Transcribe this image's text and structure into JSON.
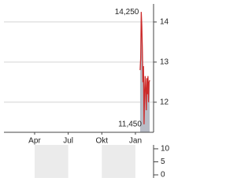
{
  "chart_data": [
    {
      "type": "line",
      "x": [
        12.42,
        12.47,
        12.52,
        12.57,
        12.62,
        12.67,
        12.72,
        12.77,
        12.82,
        12.87,
        12.92,
        12.97,
        13.02,
        13.07,
        13.12,
        13.17,
        13.22,
        13.27
      ],
      "series": [
        {
          "color": "#cc2a2a",
          "area_color": "#b8bcc6",
          "values": [
            12.8,
            13.1,
            14.25,
            13.9,
            13.3,
            12.5,
            12.9,
            11.45,
            12.2,
            12.65,
            12.3,
            11.8,
            12.6,
            12.2,
            12.65,
            12.0,
            12.5,
            12.55
          ]
        }
      ],
      "xlim": [
        0.26,
        13.62
      ],
      "xticks": [
        {
          "value": 3,
          "label": "Apr"
        },
        {
          "value": 6,
          "label": "Jul"
        },
        {
          "value": 9,
          "label": "Okt"
        },
        {
          "value": 12,
          "label": "Jan"
        }
      ],
      "ylim": [
        11.25,
        14.45
      ],
      "yticks": [
        12,
        13,
        14
      ],
      "grid": true,
      "annotations": [
        {
          "value": 14.25,
          "label": "14,250"
        },
        {
          "value": 11.45,
          "label": "11,450"
        }
      ]
    },
    {
      "type": "bar",
      "ylim": [
        -1.2,
        11.5
      ],
      "yticks": [
        0,
        5,
        10
      ],
      "band_color": "#ebebeb"
    }
  ]
}
